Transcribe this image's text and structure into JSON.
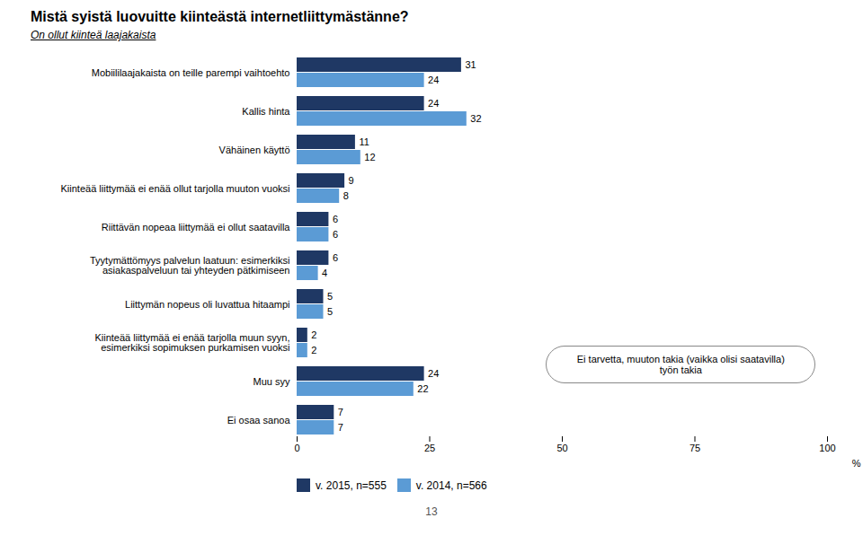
{
  "chart_data": {
    "type": "bar",
    "orientation": "horizontal",
    "title": "Mistä syistä luovuitte kiinteästä internetliittymästänne?",
    "subtitle": "On ollut kiinteä laajakaista",
    "categories": [
      "Mobiililaajakaista on teille parempi vaihtoehto",
      "Kallis hinta",
      "Vähäinen käyttö",
      "Kiinteää liittymää ei enää ollut tarjolla muuton vuoksi",
      "Riittävän nopeaa liittymää ei ollut saatavilla",
      "Tyytymättömyys palvelun laatuun: esimerkiksi\nasiakaspalveluun tai yhteyden pätkimiseen",
      "Liittymän nopeus oli luvattua hitaampi",
      "Kiinteää liittymää ei enää tarjolla muun syyn,\nesimerkiksi sopimuksen purkamisen vuoksi",
      "Muu syy",
      "Ei osaa sanoa"
    ],
    "series": [
      {
        "name": "v. 2015, n=555",
        "color": "#1f3864",
        "values": [
          31,
          24,
          11,
          9,
          6,
          6,
          5,
          2,
          24,
          7
        ]
      },
      {
        "name": "v. 2014, n=566",
        "color": "#5b9bd5",
        "values": [
          24,
          32,
          12,
          8,
          6,
          4,
          5,
          2,
          22,
          7
        ]
      }
    ],
    "xlim": [
      0,
      100
    ],
    "xticks": [
      0,
      25,
      50,
      75,
      100
    ],
    "xlabel": "%",
    "annotation": "Ei tarvetta, muuton takia (vaikka olisi saatavilla)\ntyön takia",
    "footer": "13",
    "data_labels": true,
    "legend": "bottom",
    "grid": false
  }
}
